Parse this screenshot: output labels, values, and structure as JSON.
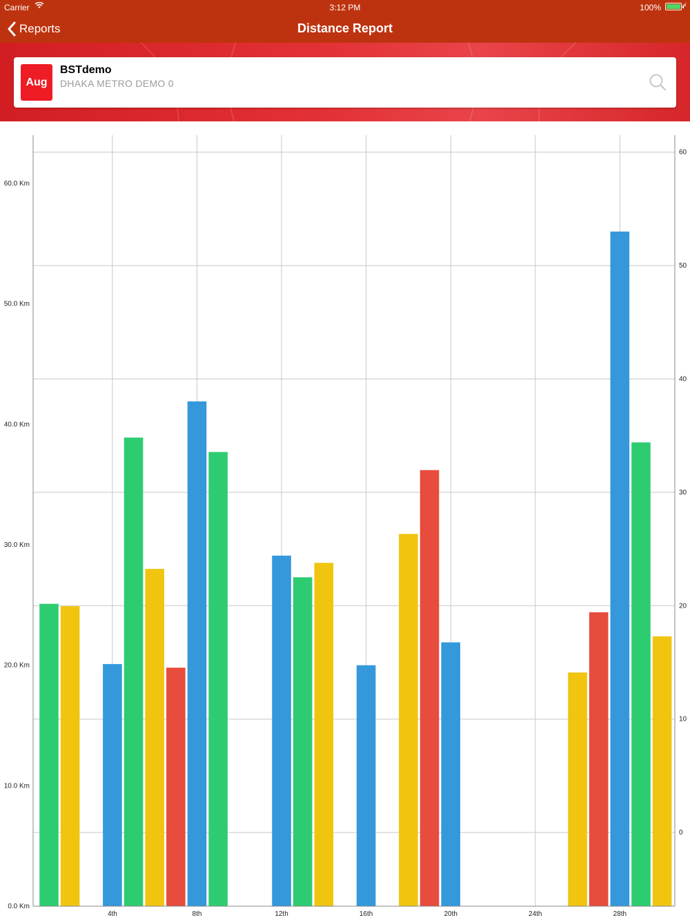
{
  "status_bar": {
    "carrier": "Carrier",
    "time": "3:12 PM",
    "battery": "100%"
  },
  "nav": {
    "back_label": "Reports",
    "title": "Distance Report"
  },
  "vehicle": {
    "month_badge": "Aug",
    "name": "BSTdemo",
    "subtitle": "DHAKA METRO DEMO 0"
  },
  "icons": {
    "back": "chevron-left-icon",
    "search": "search-icon",
    "wifi": "wifi-icon",
    "battery": "battery-icon"
  },
  "colors": {
    "nav_bar": "#be330f",
    "badge": "#ee1c25",
    "green": "#2ecc71",
    "yellow": "#f1c40f",
    "blue": "#3498db",
    "red": "#e74c3c"
  },
  "chart_data": {
    "type": "bar",
    "title": "",
    "xlabel": "",
    "ylabel": "",
    "ylim": [
      0,
      64
    ],
    "y_ticks": [
      "0.0 Km",
      "10.0 Km",
      "20.0 Km",
      "30.0 Km",
      "40.0 Km",
      "50.0 Km",
      "60.0 Km"
    ],
    "y_tick_values": [
      0,
      10,
      20,
      30,
      40,
      50,
      60
    ],
    "right_ylim": [
      -6.5,
      61.5
    ],
    "right_y_ticks": [
      "0",
      "10",
      "20",
      "30",
      "40",
      "50",
      "60"
    ],
    "right_y_tick_values": [
      0,
      10,
      20,
      30,
      40,
      50,
      60
    ],
    "xlim": [
      0.25,
      30.6
    ],
    "x_ticks": [
      "4th",
      "8th",
      "12th",
      "16th",
      "20th",
      "24th",
      "28th"
    ],
    "x_tick_values": [
      4,
      8,
      12,
      16,
      20,
      24,
      28
    ],
    "grid": true,
    "bars": [
      {
        "day": 1,
        "value": 25.1,
        "color": "green"
      },
      {
        "day": 2,
        "value": 24.9,
        "color": "yellow"
      },
      {
        "day": 4,
        "value": 20.1,
        "color": "blue"
      },
      {
        "day": 5,
        "value": 38.9,
        "color": "green"
      },
      {
        "day": 6,
        "value": 28.0,
        "color": "yellow"
      },
      {
        "day": 7,
        "value": 19.8,
        "color": "red"
      },
      {
        "day": 8,
        "value": 41.9,
        "color": "blue"
      },
      {
        "day": 9,
        "value": 37.7,
        "color": "green"
      },
      {
        "day": 12,
        "value": 29.1,
        "color": "blue"
      },
      {
        "day": 13,
        "value": 27.3,
        "color": "green"
      },
      {
        "day": 14,
        "value": 28.5,
        "color": "yellow"
      },
      {
        "day": 16,
        "value": 20.0,
        "color": "blue"
      },
      {
        "day": 18,
        "value": 30.9,
        "color": "yellow"
      },
      {
        "day": 19,
        "value": 36.2,
        "color": "red"
      },
      {
        "day": 20,
        "value": 21.9,
        "color": "blue"
      },
      {
        "day": 26,
        "value": 19.4,
        "color": "yellow"
      },
      {
        "day": 27,
        "value": 24.4,
        "color": "red"
      },
      {
        "day": 28,
        "value": 56.0,
        "color": "blue"
      },
      {
        "day": 29,
        "value": 38.5,
        "color": "green"
      },
      {
        "day": 30,
        "value": 22.4,
        "color": "yellow"
      }
    ]
  }
}
